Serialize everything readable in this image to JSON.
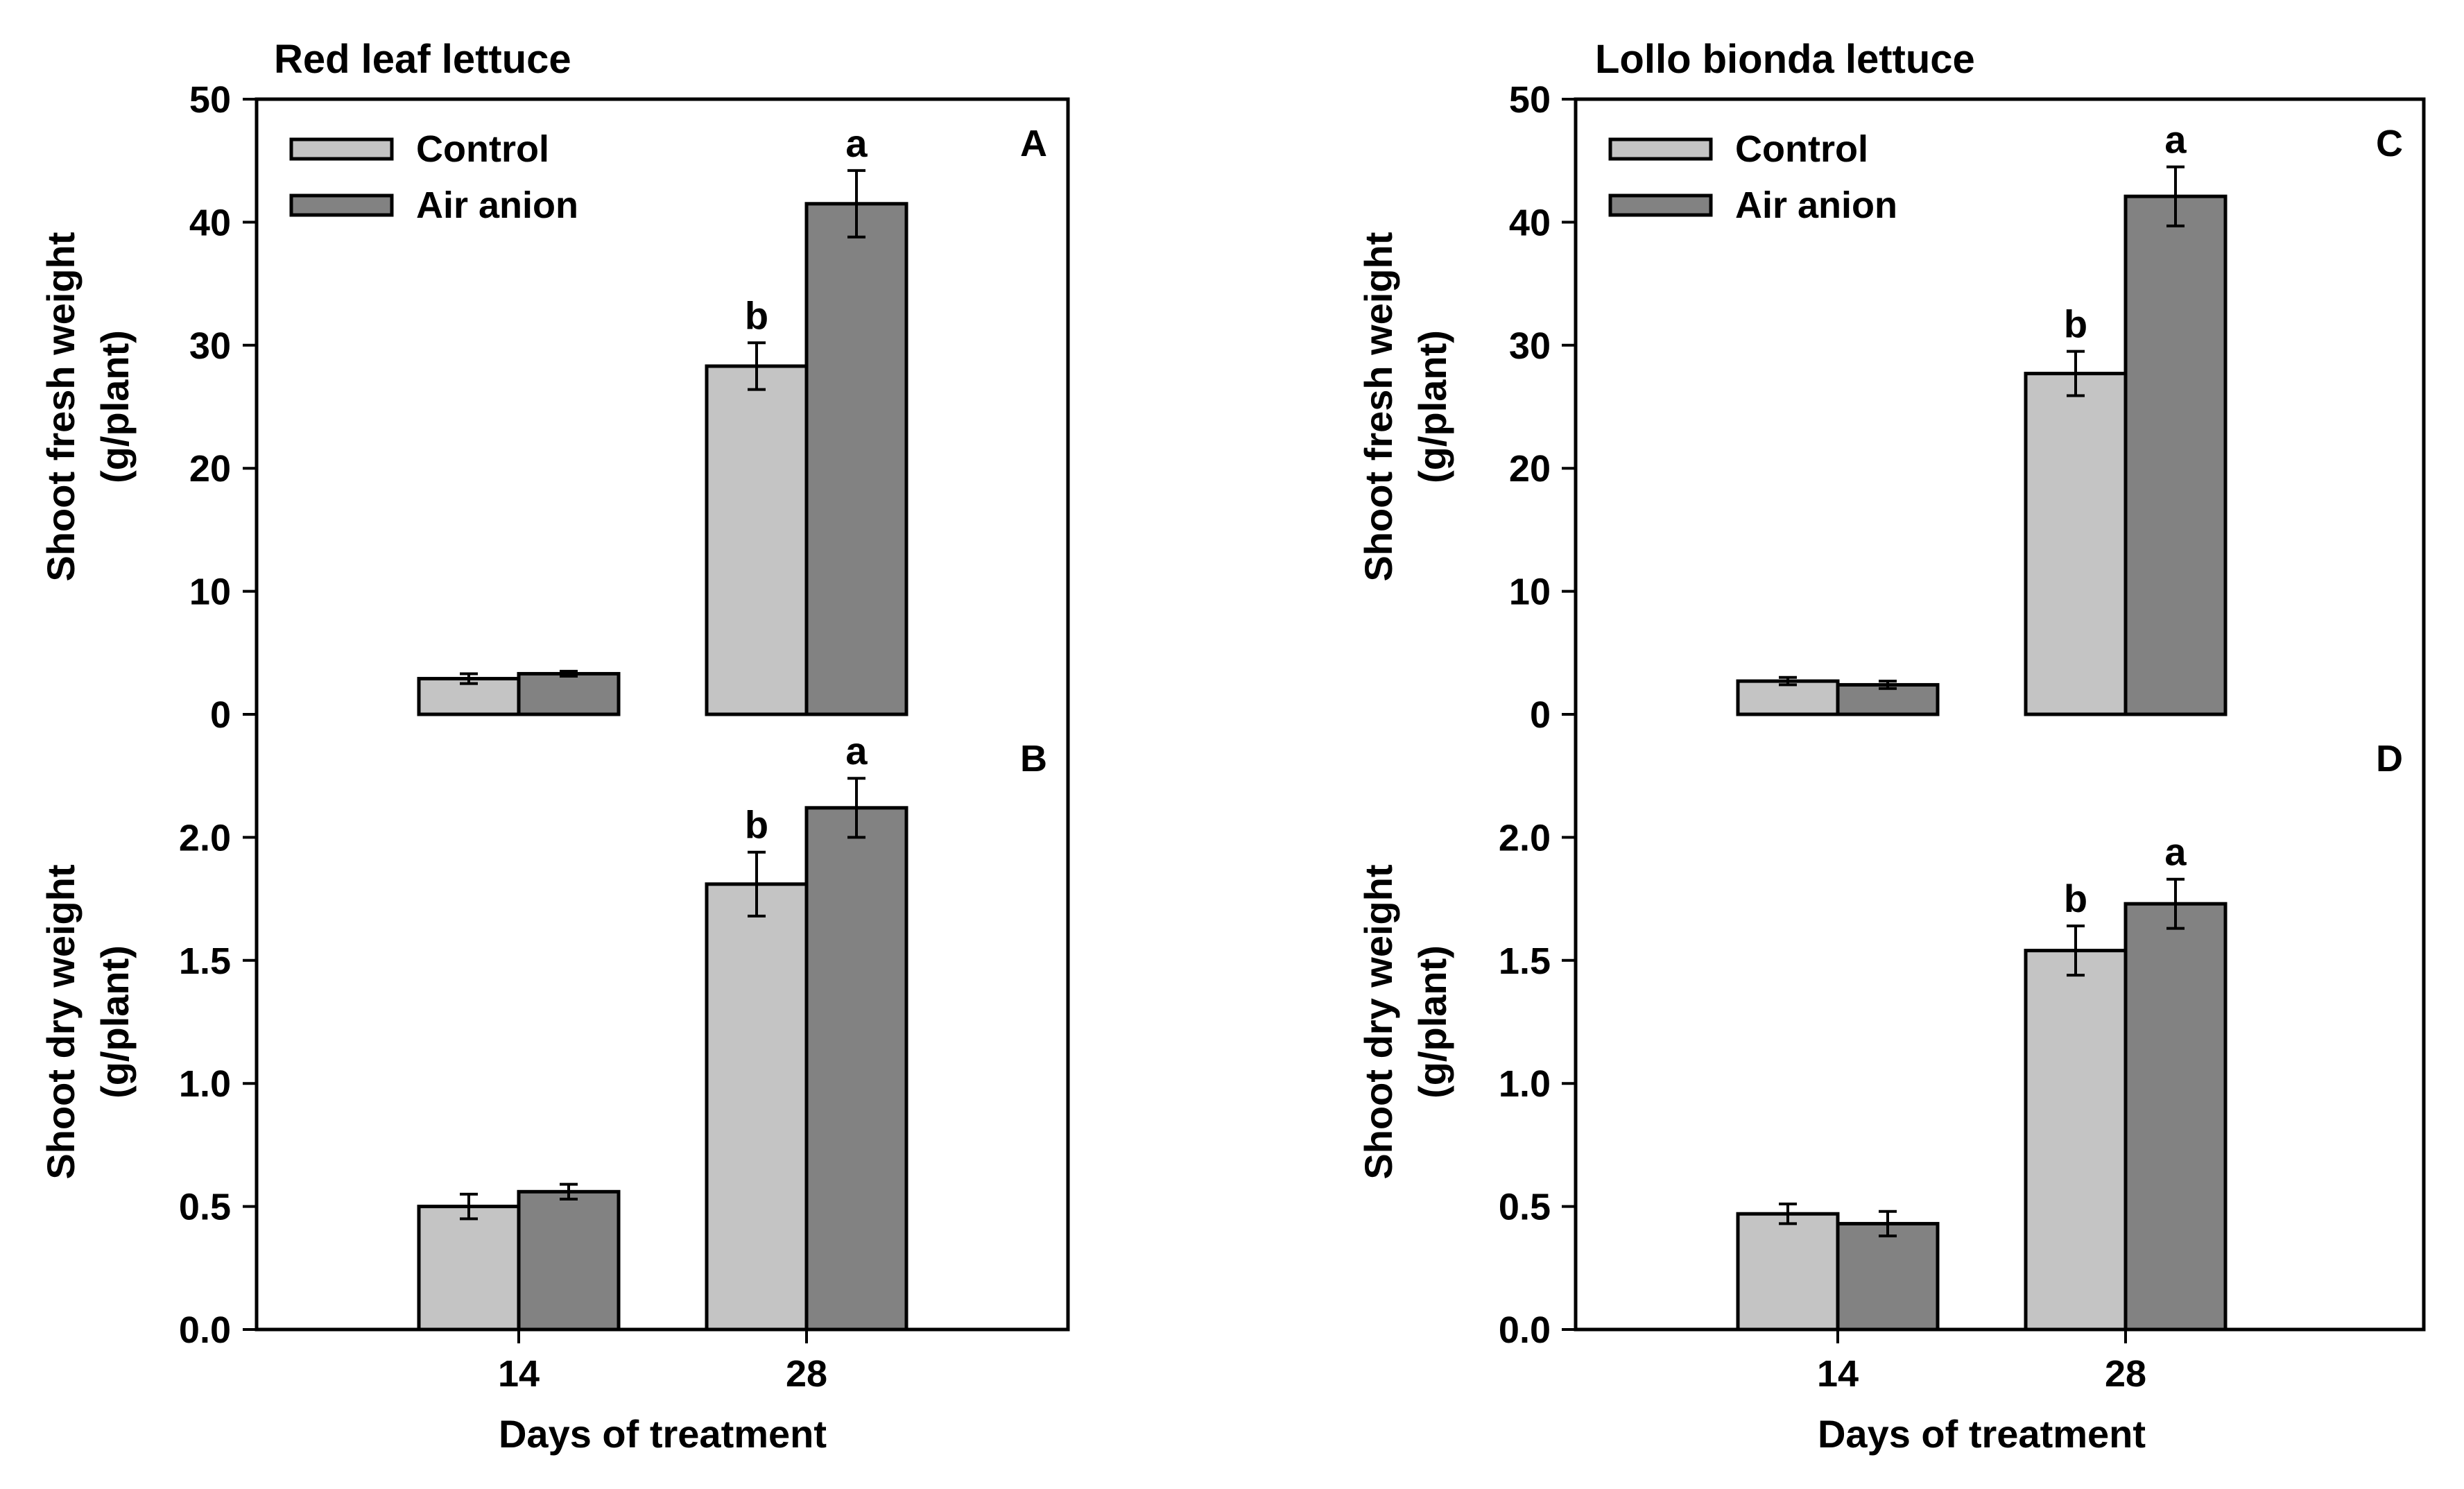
{
  "colors": {
    "control": "#c4c4c4",
    "anion": "#828282",
    "stroke": "#000000",
    "background": "#ffffff"
  },
  "legend": {
    "items": [
      "Control",
      "Air anion"
    ]
  },
  "chart_data": [
    {
      "type": "bar",
      "title": "Red leaf lettuce",
      "panel": "A",
      "xlabel": "",
      "ylabel_lines": [
        "Shoot fresh weight",
        "(g/plant)"
      ],
      "categories": [
        "14",
        "28"
      ],
      "ylim": [
        0,
        50
      ],
      "yticks": [
        0,
        10,
        20,
        30,
        40,
        50
      ],
      "ytick_labels": [
        "0",
        "10",
        "20",
        "30",
        "40",
        "50"
      ],
      "legend": true,
      "series": [
        {
          "name": "Control",
          "values": [
            2.9,
            28.3
          ],
          "errors": [
            0.4,
            1.9
          ],
          "letters": [
            "",
            "b"
          ]
        },
        {
          "name": "Air anion",
          "values": [
            3.3,
            41.5
          ],
          "errors": [
            0.2,
            2.7
          ],
          "letters": [
            "",
            "a"
          ]
        }
      ]
    },
    {
      "type": "bar",
      "title": "",
      "panel": "B",
      "xlabel": "Days of treatment",
      "ylabel_lines": [
        "Shoot dry weight",
        "(g/plant)"
      ],
      "categories": [
        "14",
        "28"
      ],
      "ylim": [
        0,
        2.5
      ],
      "yticks": [
        0,
        0.5,
        1.0,
        1.5,
        2.0
      ],
      "ytick_labels": [
        "0.0",
        "0.5",
        "1.0",
        "1.5",
        "2.0"
      ],
      "legend": false,
      "series": [
        {
          "name": "Control",
          "values": [
            0.5,
            1.81
          ],
          "errors": [
            0.05,
            0.13
          ],
          "letters": [
            "",
            "b"
          ]
        },
        {
          "name": "Air anion",
          "values": [
            0.56,
            2.12
          ],
          "errors": [
            0.03,
            0.12
          ],
          "letters": [
            "",
            "a"
          ]
        }
      ]
    },
    {
      "type": "bar",
      "title": "Lollo bionda lettuce",
      "panel": "C",
      "xlabel": "",
      "ylabel_lines": [
        "Shoot fresh weight",
        "(g/plant)"
      ],
      "categories": [
        "14",
        "28"
      ],
      "ylim": [
        0,
        50
      ],
      "yticks": [
        0,
        10,
        20,
        30,
        40,
        50
      ],
      "ytick_labels": [
        "0",
        "10",
        "20",
        "30",
        "40",
        "50"
      ],
      "legend": true,
      "series": [
        {
          "name": "Control",
          "values": [
            2.7,
            27.7
          ],
          "errors": [
            0.3,
            1.8
          ],
          "letters": [
            "",
            "b"
          ]
        },
        {
          "name": "Air anion",
          "values": [
            2.4,
            42.1
          ],
          "errors": [
            0.3,
            2.4
          ],
          "letters": [
            "",
            "a"
          ]
        }
      ]
    },
    {
      "type": "bar",
      "title": "",
      "panel": "D",
      "xlabel": "Days of treatment",
      "ylabel_lines": [
        "Shoot dry weight",
        "(g/plant)"
      ],
      "categories": [
        "14",
        "28"
      ],
      "ylim": [
        0,
        2.5
      ],
      "yticks": [
        0,
        0.5,
        1.0,
        1.5,
        2.0
      ],
      "ytick_labels": [
        "0.0",
        "0.5",
        "1.0",
        "1.5",
        "2.0"
      ],
      "legend": false,
      "series": [
        {
          "name": "Control",
          "values": [
            0.47,
            1.54
          ],
          "errors": [
            0.04,
            0.1
          ],
          "letters": [
            "",
            "b"
          ]
        },
        {
          "name": "Air anion",
          "values": [
            0.43,
            1.73
          ],
          "errors": [
            0.05,
            0.1
          ],
          "letters": [
            "",
            "a"
          ]
        }
      ]
    }
  ]
}
